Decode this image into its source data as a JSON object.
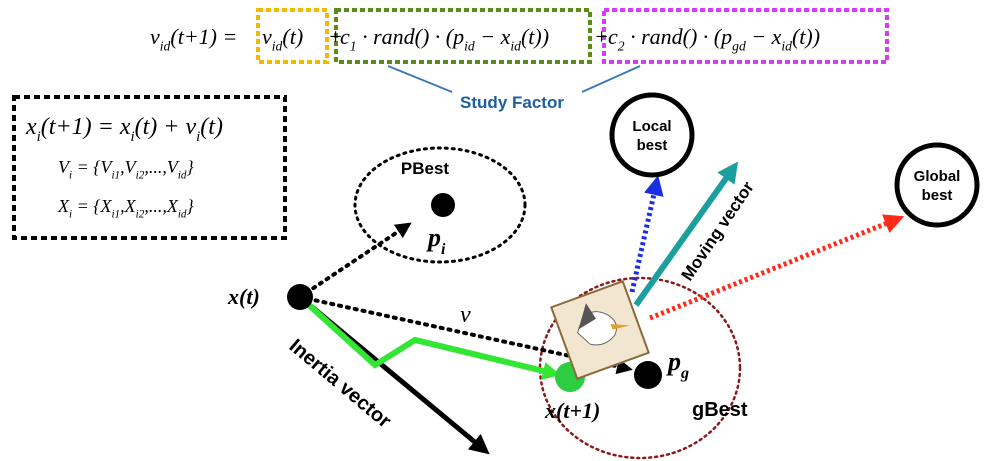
{
  "equation": [
    [
      {
        "text": "v"
      },
      {
        "sub": "id"
      },
      {
        "text": "(t+1) ="
      }
    ],
    [
      {
        "text": "v"
      },
      {
        "sub": "id"
      },
      {
        "text": "(t)"
      }
    ],
    [
      {
        "text": "+"
      }
    ],
    [
      {
        "text": "c"
      },
      {
        "sub": "1"
      },
      {
        "text": " · rand() · (p"
      },
      {
        "sub": "id"
      },
      {
        "text": " − x"
      },
      {
        "sub": "id"
      },
      {
        "text": "(t))"
      }
    ],
    [
      {
        "text": "+"
      }
    ],
    [
      {
        "text": "c"
      },
      {
        "sub": "2"
      },
      {
        "text": " · rand() · (p"
      },
      {
        "sub": "gd"
      },
      {
        "text": " − x"
      },
      {
        "sub": "id"
      },
      {
        "text": "(t))"
      }
    ]
  ],
  "study_factor": "Study Factor",
  "particle_equations": [
    [
      {
        "text": "x"
      },
      {
        "sub": "i"
      },
      {
        "text": "(t+1) = x"
      },
      {
        "sub": "i"
      },
      {
        "text": "(t) + v"
      },
      {
        "sub": "i"
      },
      {
        "text": "(t)"
      }
    ],
    [
      {
        "text": "V"
      },
      {
        "sub": "i"
      },
      {
        "text": " = {V"
      },
      {
        "sub": "i1"
      },
      {
        "text": ",V"
      },
      {
        "sub": "i2"
      },
      {
        "text": ",...,V"
      },
      {
        "sub": "id"
      },
      {
        "text": "}"
      }
    ],
    [
      {
        "text": "X"
      },
      {
        "sub": "i"
      },
      {
        "text": " = {X"
      },
      {
        "sub": "i1"
      },
      {
        "text": ",X"
      },
      {
        "sub": "i2"
      },
      {
        "text": ",...,X"
      },
      {
        "sub": "id"
      },
      {
        "text": "}"
      }
    ]
  ],
  "labels": {
    "pbest": "PBest",
    "p_i": [
      {
        "text": "p"
      },
      {
        "sub": "i"
      }
    ],
    "x_t": "x(t)",
    "v": "v",
    "p_g": [
      {
        "text": "p"
      },
      {
        "sub": "g"
      }
    ],
    "x_t1": "x(t+1)",
    "gbest": "gBest",
    "inertia": "Inertia vector",
    "moving": "Moving vector",
    "local_best": [
      "Local",
      "best"
    ],
    "global_best": [
      "Global",
      "best"
    ]
  }
}
